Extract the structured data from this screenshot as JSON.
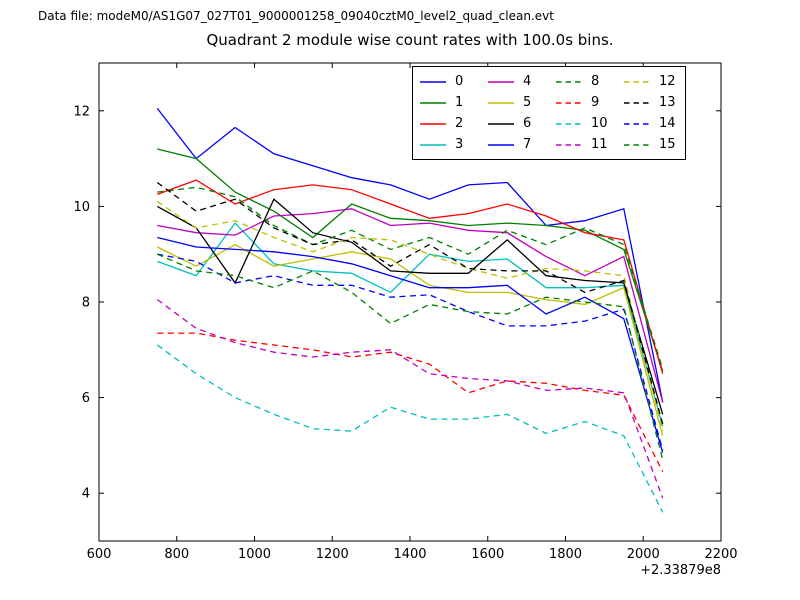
{
  "header": {
    "data_file_label": "Data file: modeM0/AS1G07_027T01_9000001258_09040cztM0_level2_quad_clean.evt"
  },
  "chart_data": {
    "type": "line",
    "title": "Quadrant 2 module wise count rates with 100.0s bins.",
    "xlabel": "",
    "ylabel": "",
    "x_offset_label": "+2.33879e8",
    "grid": false,
    "legend": {
      "position": "upper right",
      "columns": 4,
      "rows": 4
    },
    "axes": {
      "xlim": [
        600,
        2200
      ],
      "ylim": [
        3,
        13
      ],
      "xticks": [
        600,
        800,
        1000,
        1200,
        1400,
        1600,
        1800,
        2000,
        2200
      ],
      "yticks": [
        4,
        6,
        8,
        10,
        12
      ]
    },
    "x": [
      750,
      850,
      950,
      1050,
      1150,
      1250,
      1350,
      1450,
      1550,
      1650,
      1750,
      1850,
      1950,
      2050
    ],
    "series": [
      {
        "name": "0",
        "color": "#0000ff",
        "style": "solid",
        "values": [
          12.05,
          11.0,
          11.65,
          11.1,
          10.85,
          10.6,
          10.45,
          10.15,
          10.45,
          10.5,
          9.6,
          9.7,
          9.95,
          5.9
        ]
      },
      {
        "name": "1",
        "color": "#008000",
        "style": "solid",
        "values": [
          11.2,
          11.0,
          10.3,
          9.9,
          9.35,
          10.05,
          9.75,
          9.7,
          9.6,
          9.65,
          9.6,
          9.5,
          9.1,
          6.55
        ]
      },
      {
        "name": "2",
        "color": "#ff0000",
        "style": "solid",
        "values": [
          10.25,
          10.55,
          10.05,
          10.35,
          10.45,
          10.35,
          10.05,
          9.75,
          9.85,
          10.05,
          9.8,
          9.45,
          9.3,
          6.5
        ]
      },
      {
        "name": "3",
        "color": "#00bfbf",
        "style": "solid",
        "values": [
          8.85,
          8.55,
          9.65,
          8.8,
          8.65,
          8.6,
          8.2,
          9.0,
          8.85,
          8.9,
          8.3,
          8.3,
          8.35,
          5.4
        ]
      },
      {
        "name": "4",
        "color": "#bf00bf",
        "style": "solid",
        "values": [
          9.6,
          9.45,
          9.4,
          9.8,
          9.85,
          9.95,
          9.6,
          9.65,
          9.5,
          9.45,
          8.95,
          8.55,
          8.95,
          5.9
        ]
      },
      {
        "name": "5",
        "color": "#bfbf00",
        "style": "solid",
        "values": [
          9.15,
          8.75,
          9.2,
          8.75,
          8.9,
          9.05,
          8.9,
          8.35,
          8.2,
          8.2,
          8.05,
          7.95,
          8.3,
          5.2
        ]
      },
      {
        "name": "6",
        "color": "#000000",
        "style": "solid",
        "values": [
          10.0,
          9.55,
          8.4,
          10.15,
          9.45,
          9.25,
          8.65,
          8.6,
          8.6,
          9.3,
          8.55,
          8.45,
          8.4,
          5.65
        ]
      },
      {
        "name": "7",
        "color": "#0000ff",
        "style": "solid",
        "values": [
          9.35,
          9.15,
          9.1,
          9.05,
          8.95,
          8.8,
          8.55,
          8.3,
          8.3,
          8.35,
          7.75,
          8.1,
          7.65,
          4.85
        ]
      },
      {
        "name": "8",
        "color": "#008000",
        "style": "dashed",
        "values": [
          10.3,
          10.4,
          10.2,
          9.6,
          9.2,
          9.5,
          9.1,
          9.35,
          9.0,
          9.5,
          9.2,
          9.55,
          9.2,
          6.6
        ]
      },
      {
        "name": "9",
        "color": "#ff0000",
        "style": "dashed",
        "values": [
          7.35,
          7.35,
          7.2,
          7.1,
          7.0,
          6.85,
          6.95,
          6.7,
          6.1,
          6.35,
          6.3,
          6.15,
          6.05,
          4.45
        ]
      },
      {
        "name": "10",
        "color": "#00bfbf",
        "style": "dashed",
        "values": [
          7.1,
          6.5,
          6.0,
          5.65,
          5.35,
          5.3,
          5.8,
          5.55,
          5.55,
          5.65,
          5.25,
          5.5,
          5.2,
          3.6
        ]
      },
      {
        "name": "11",
        "color": "#bf00bf",
        "style": "dashed",
        "values": [
          8.05,
          7.45,
          7.15,
          6.95,
          6.85,
          6.95,
          7.0,
          6.5,
          6.4,
          6.35,
          6.15,
          6.2,
          6.1,
          3.9
        ]
      },
      {
        "name": "12",
        "color": "#bfbf00",
        "style": "dashed",
        "values": [
          10.1,
          9.55,
          9.7,
          9.35,
          9.05,
          9.35,
          9.3,
          9.0,
          8.7,
          8.5,
          8.7,
          8.65,
          8.55,
          5.3
        ]
      },
      {
        "name": "13",
        "color": "#000000",
        "style": "dashed",
        "values": [
          10.5,
          9.9,
          10.15,
          9.55,
          9.2,
          9.3,
          8.75,
          9.2,
          8.7,
          8.65,
          8.65,
          8.2,
          8.45,
          5.45
        ]
      },
      {
        "name": "14",
        "color": "#0000ff",
        "style": "dashed",
        "values": [
          9.0,
          8.85,
          8.4,
          8.55,
          8.35,
          8.35,
          8.1,
          8.15,
          7.8,
          7.5,
          7.5,
          7.6,
          7.85,
          4.9
        ]
      },
      {
        "name": "15",
        "color": "#008000",
        "style": "dashed",
        "values": [
          9.0,
          8.65,
          8.55,
          8.3,
          8.65,
          8.2,
          7.55,
          7.95,
          7.8,
          7.75,
          8.1,
          8.0,
          7.9,
          4.7
        ]
      }
    ]
  }
}
